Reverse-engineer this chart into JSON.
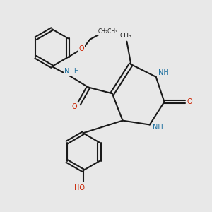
{
  "bg_color": "#e8e8e8",
  "bond_color": "#1a1a1a",
  "N_color": "#1a6e9e",
  "O_color": "#cc2200",
  "line_width": 1.5,
  "font_size_atom": 7.0,
  "fig_size": [
    3.0,
    3.0
  ],
  "dpi": 100,
  "xlim": [
    0,
    10
  ],
  "ylim": [
    0,
    10
  ]
}
